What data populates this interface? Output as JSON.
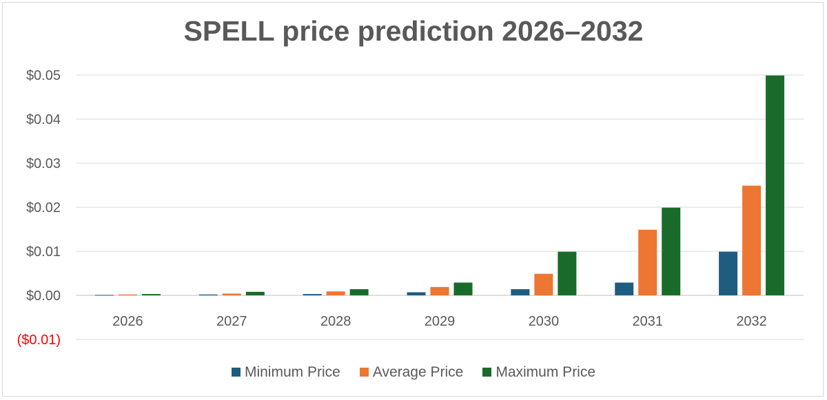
{
  "chart_data": {
    "type": "bar",
    "title": "SPELL price prediction 2026–2032",
    "categories": [
      "2026",
      "2027",
      "2028",
      "2029",
      "2030",
      "2031",
      "2032"
    ],
    "series": [
      {
        "name": "Minimum Price",
        "color": "#1f5c7f",
        "values": [
          0.0001,
          0.0002,
          0.0003,
          0.0007,
          0.0014,
          0.0029,
          0.0099
        ]
      },
      {
        "name": "Average Price",
        "color": "#ed7633",
        "values": [
          0.0002,
          0.0004,
          0.0009,
          0.0019,
          0.0049,
          0.0149,
          0.0249
        ]
      },
      {
        "name": "Maximum Price",
        "color": "#1a6b2b",
        "values": [
          0.0003,
          0.0008,
          0.0014,
          0.0029,
          0.0099,
          0.0199,
          0.0499
        ]
      }
    ],
    "ylim": [
      -0.01,
      0.05
    ],
    "ytick_labels": [
      "$0.05",
      "$0.04",
      "$0.03",
      "$0.02",
      "$0.01",
      "$0.00",
      "($0.01)"
    ],
    "ytick_values": [
      0.05,
      0.04,
      0.03,
      0.02,
      0.01,
      0.0,
      -0.01
    ],
    "negative_tick_color": "#ff0000",
    "grid": true,
    "legend_position": "bottom"
  }
}
